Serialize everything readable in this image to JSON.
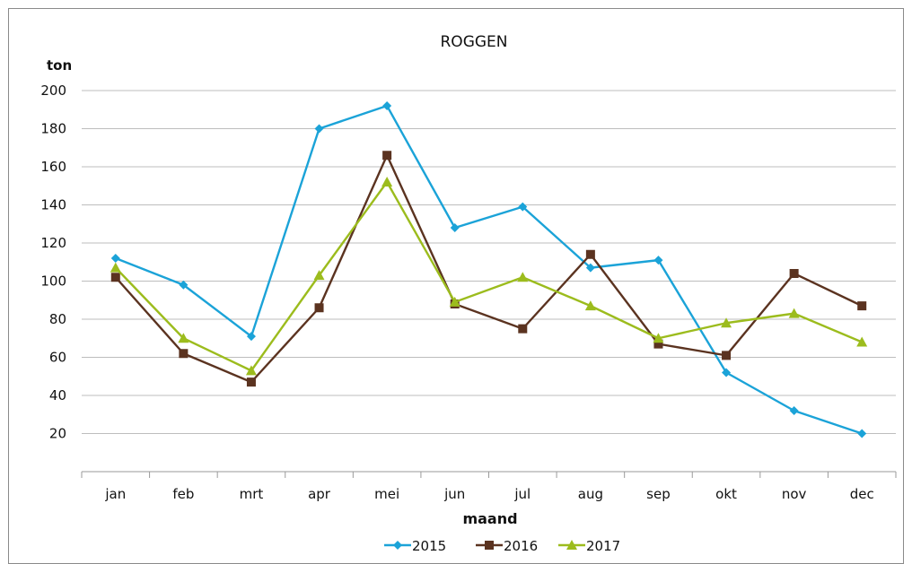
{
  "chart_data": {
    "type": "line",
    "title": "ROGGEN",
    "xlabel": "maand",
    "ylabel": "ton",
    "categories": [
      "jan",
      "feb",
      "mrt",
      "apr",
      "mei",
      "jun",
      "jul",
      "aug",
      "sep",
      "okt",
      "nov",
      "dec"
    ],
    "ylim": [
      0,
      200
    ],
    "yticks": [
      20,
      40,
      60,
      80,
      100,
      120,
      140,
      160,
      180,
      200
    ],
    "grid": true,
    "legend": "bottom",
    "series": [
      {
        "name": "2015",
        "color": "#1ba3d8",
        "marker": "diamond",
        "values": [
          112,
          98,
          71,
          180,
          192,
          128,
          139,
          107,
          111,
          52,
          32,
          20
        ]
      },
      {
        "name": "2016",
        "color": "#5b3320",
        "marker": "square",
        "values": [
          102,
          62,
          47,
          86,
          166,
          88,
          75,
          114,
          67,
          61,
          104,
          87
        ]
      },
      {
        "name": "2017",
        "color": "#9cbc1d",
        "marker": "triangle",
        "values": [
          107,
          70,
          53,
          103,
          152,
          89,
          102,
          87,
          70,
          78,
          83,
          68
        ]
      }
    ]
  }
}
